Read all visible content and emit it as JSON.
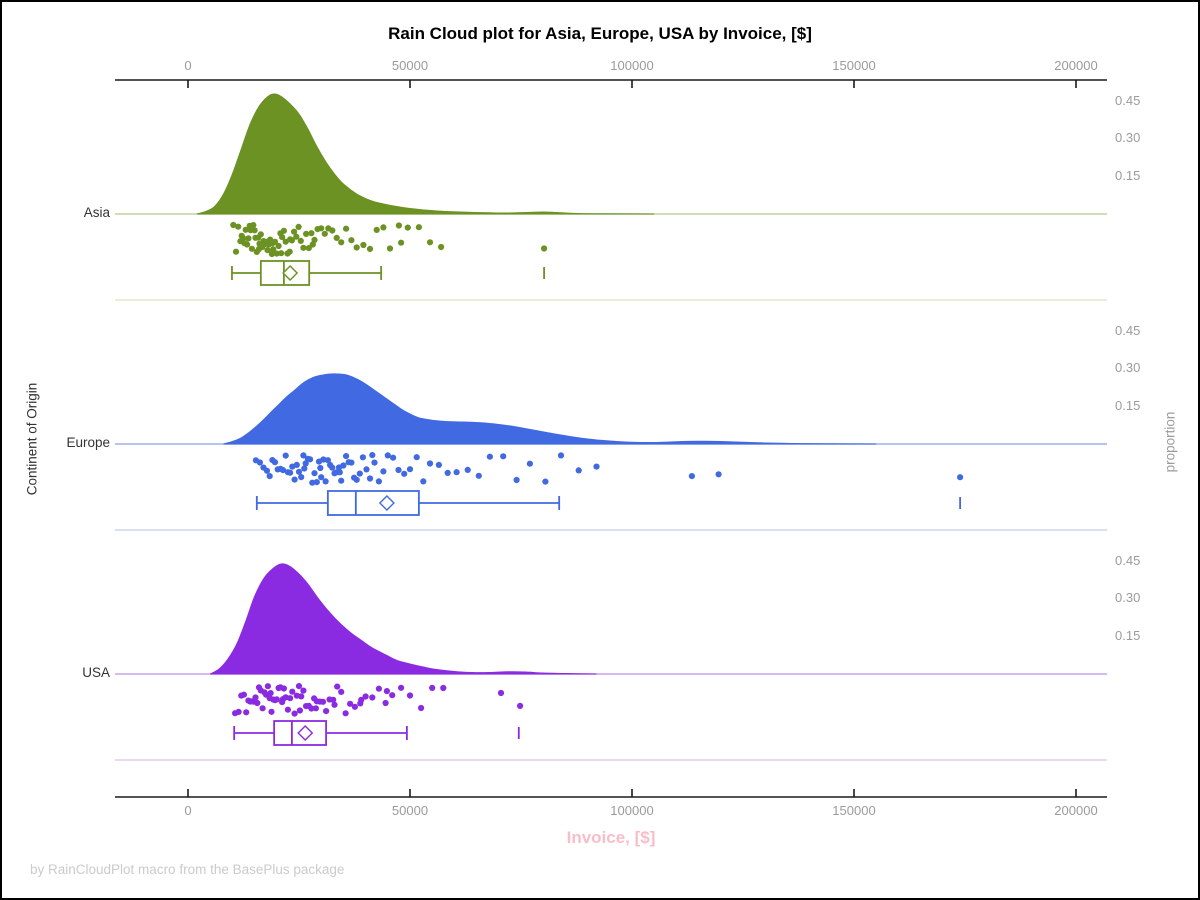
{
  "title": "Rain Cloud plot for Asia, Europe, USA by Invoice, [$]",
  "footer": "by RainCloudPlot macro from the BasePlus package",
  "x_axis": {
    "label": "Invoice, [$]",
    "label_color": "#F9BDCA",
    "ticks": [
      0,
      50000,
      100000,
      150000,
      200000
    ],
    "tick_labels": [
      "0",
      "50000",
      "100000",
      "150000",
      "200000"
    ]
  },
  "y_axis": {
    "label": "Continent of Origin",
    "categories": [
      "Asia",
      "Europe",
      "USA"
    ]
  },
  "right_axis": {
    "label": "proportion",
    "ticks": [
      0.45,
      0.3,
      0.15
    ],
    "tick_labels": [
      "0.45",
      "0.30",
      "0.15"
    ]
  },
  "chart_data": {
    "type": "raincloud",
    "xlabel": "Invoice, [$]",
    "ylabel": "Continent of Origin",
    "xlim": [
      0,
      200000
    ],
    "proportion_axis": {
      "ticks": [
        0.45,
        0.3,
        0.15
      ],
      "max": 0.5
    },
    "x_axis_positions": [
      "top",
      "bottom"
    ],
    "grid": false,
    "series": [
      {
        "name": "Asia",
        "color": "#6B9223",
        "baseline_color": "#c2d2a0",
        "separator_color": "#e0e8d0",
        "density": [
          [
            2000,
            0
          ],
          [
            4000,
            0.01
          ],
          [
            6000,
            0.03
          ],
          [
            8000,
            0.08
          ],
          [
            10000,
            0.16
          ],
          [
            12000,
            0.26
          ],
          [
            14000,
            0.36
          ],
          [
            16000,
            0.43
          ],
          [
            18000,
            0.47
          ],
          [
            19500,
            0.48
          ],
          [
            21000,
            0.47
          ],
          [
            23000,
            0.44
          ],
          [
            25000,
            0.4
          ],
          [
            27000,
            0.34
          ],
          [
            29000,
            0.27
          ],
          [
            31000,
            0.21
          ],
          [
            33000,
            0.16
          ],
          [
            35000,
            0.12
          ],
          [
            38000,
            0.08
          ],
          [
            41000,
            0.055
          ],
          [
            44000,
            0.04
          ],
          [
            47000,
            0.03
          ],
          [
            50000,
            0.022
          ],
          [
            54000,
            0.015
          ],
          [
            58000,
            0.01
          ],
          [
            63000,
            0.007
          ],
          [
            68000,
            0.005
          ],
          [
            72000,
            0.004
          ],
          [
            76000,
            0.006
          ],
          [
            80000,
            0.008
          ],
          [
            84000,
            0.005
          ],
          [
            88000,
            0.002
          ],
          [
            95000,
            0.001
          ],
          [
            105000,
            0
          ]
        ],
        "box": {
          "whisker_low": 9900,
          "q1": 16400,
          "median": 21600,
          "mean": 23000,
          "q3": 27300,
          "whisker_high": 43500,
          "outliers": [
            80200
          ]
        },
        "rain": [
          10200,
          10800,
          11300,
          11800,
          12100,
          12400,
          12700,
          13000,
          13300,
          13600,
          13900,
          14100,
          14400,
          14700,
          15000,
          15200,
          15500,
          15800,
          16100,
          16400,
          16700,
          17000,
          17300,
          17600,
          17900,
          18200,
          18500,
          18900,
          19200,
          19600,
          20000,
          20400,
          20800,
          21200,
          21600,
          22000,
          22400,
          22900,
          23400,
          23900,
          24400,
          24900,
          25400,
          26000,
          26600,
          27200,
          27800,
          28500,
          29200,
          30000,
          30800,
          31600,
          32500,
          33500,
          34500,
          35600,
          36800,
          38000,
          39500,
          41000,
          42500,
          44000,
          45500,
          47500,
          49500,
          52000,
          54500,
          57000,
          48000,
          28100,
          19000,
          23000,
          16000,
          21000,
          80200
        ]
      },
      {
        "name": "Europe",
        "color": "#4169E1",
        "baseline_color": "#9db1e8",
        "separator_color": "#ccd5ef",
        "density": [
          [
            8000,
            0
          ],
          [
            10000,
            0.01
          ],
          [
            12000,
            0.025
          ],
          [
            14000,
            0.05
          ],
          [
            16000,
            0.08
          ],
          [
            18000,
            0.115
          ],
          [
            20000,
            0.15
          ],
          [
            22000,
            0.185
          ],
          [
            24000,
            0.215
          ],
          [
            26000,
            0.245
          ],
          [
            28000,
            0.265
          ],
          [
            30000,
            0.275
          ],
          [
            32000,
            0.28
          ],
          [
            34000,
            0.28
          ],
          [
            36000,
            0.275
          ],
          [
            38000,
            0.26
          ],
          [
            40000,
            0.24
          ],
          [
            42000,
            0.215
          ],
          [
            44000,
            0.19
          ],
          [
            46000,
            0.165
          ],
          [
            48000,
            0.14
          ],
          [
            50000,
            0.12
          ],
          [
            52000,
            0.105
          ],
          [
            55000,
            0.095
          ],
          [
            58000,
            0.09
          ],
          [
            62000,
            0.088
          ],
          [
            66000,
            0.085
          ],
          [
            70000,
            0.078
          ],
          [
            74000,
            0.068
          ],
          [
            78000,
            0.055
          ],
          [
            82000,
            0.042
          ],
          [
            86000,
            0.03
          ],
          [
            90000,
            0.02
          ],
          [
            95000,
            0.012
          ],
          [
            100000,
            0.007
          ],
          [
            105000,
            0.006
          ],
          [
            110000,
            0.009
          ],
          [
            115000,
            0.011
          ],
          [
            120000,
            0.01
          ],
          [
            125000,
            0.007
          ],
          [
            130000,
            0.004
          ],
          [
            136000,
            0.002
          ],
          [
            145000,
            0.001
          ],
          [
            155000,
            0
          ]
        ],
        "box": {
          "whisker_low": 15500,
          "q1": 31500,
          "median": 37800,
          "mean": 44800,
          "q3": 52000,
          "whisker_high": 83600,
          "outliers": [
            173900
          ]
        },
        "rain": [
          15300,
          16200,
          17000,
          17800,
          18400,
          19000,
          19600,
          20200,
          20800,
          21400,
          22000,
          22500,
          23000,
          23500,
          24000,
          24500,
          25000,
          25500,
          26000,
          26500,
          27000,
          27500,
          28000,
          28500,
          29000,
          29500,
          30000,
          30500,
          31000,
          31500,
          32000,
          32500,
          33000,
          33500,
          34000,
          34500,
          35000,
          35600,
          36200,
          36800,
          37400,
          38000,
          38700,
          39400,
          40200,
          41000,
          42000,
          43000,
          44000,
          45000,
          46200,
          47400,
          48700,
          50000,
          51500,
          53000,
          54500,
          56500,
          58500,
          60500,
          63000,
          65500,
          68000,
          71000,
          74000,
          77000,
          80500,
          84000,
          88000,
          92000,
          34200,
          29800,
          26200,
          41500,
          113500,
          119500,
          173900
        ]
      },
      {
        "name": "USA",
        "color": "#8A2BE2",
        "baseline_color": "#c8a4ea",
        "separator_color": "#e0ccf2",
        "density": [
          [
            5000,
            0
          ],
          [
            7000,
            0.02
          ],
          [
            9000,
            0.06
          ],
          [
            11000,
            0.12
          ],
          [
            13000,
            0.21
          ],
          [
            15000,
            0.31
          ],
          [
            17000,
            0.38
          ],
          [
            19000,
            0.42
          ],
          [
            21000,
            0.44
          ],
          [
            23000,
            0.43
          ],
          [
            25000,
            0.4
          ],
          [
            27000,
            0.36
          ],
          [
            29000,
            0.31
          ],
          [
            31000,
            0.265
          ],
          [
            33000,
            0.225
          ],
          [
            35000,
            0.19
          ],
          [
            37000,
            0.16
          ],
          [
            39000,
            0.135
          ],
          [
            41000,
            0.11
          ],
          [
            43000,
            0.09
          ],
          [
            45000,
            0.072
          ],
          [
            47000,
            0.055
          ],
          [
            50000,
            0.04
          ],
          [
            53000,
            0.028
          ],
          [
            56000,
            0.018
          ],
          [
            60000,
            0.01
          ],
          [
            64000,
            0.006
          ],
          [
            68000,
            0.006
          ],
          [
            72000,
            0.009
          ],
          [
            76000,
            0.008
          ],
          [
            80000,
            0.004
          ],
          [
            85000,
            0.002
          ],
          [
            92000,
            0
          ]
        ],
        "box": {
          "whisker_low": 10400,
          "q1": 19400,
          "median": 23400,
          "mean": 26400,
          "q3": 31100,
          "whisker_high": 49300,
          "outliers": [
            74500
          ]
        },
        "rain": [
          10600,
          11400,
          12000,
          12600,
          13100,
          13600,
          14000,
          14400,
          14800,
          15200,
          15600,
          16000,
          16400,
          16800,
          17200,
          17600,
          18000,
          18400,
          18800,
          19200,
          19600,
          20000,
          20400,
          20800,
          21200,
          21600,
          22000,
          22500,
          23000,
          23500,
          24000,
          24500,
          25000,
          25500,
          26000,
          26600,
          27200,
          27800,
          28400,
          29000,
          29700,
          30400,
          31100,
          31900,
          32700,
          33600,
          34500,
          35500,
          36500,
          37600,
          38800,
          40000,
          41500,
          43000,
          44500,
          46000,
          48000,
          50000,
          52500,
          55000,
          57500,
          25200,
          21400,
          18600,
          28800,
          33000,
          39000,
          70500,
          74800,
          44800
        ]
      }
    ]
  }
}
